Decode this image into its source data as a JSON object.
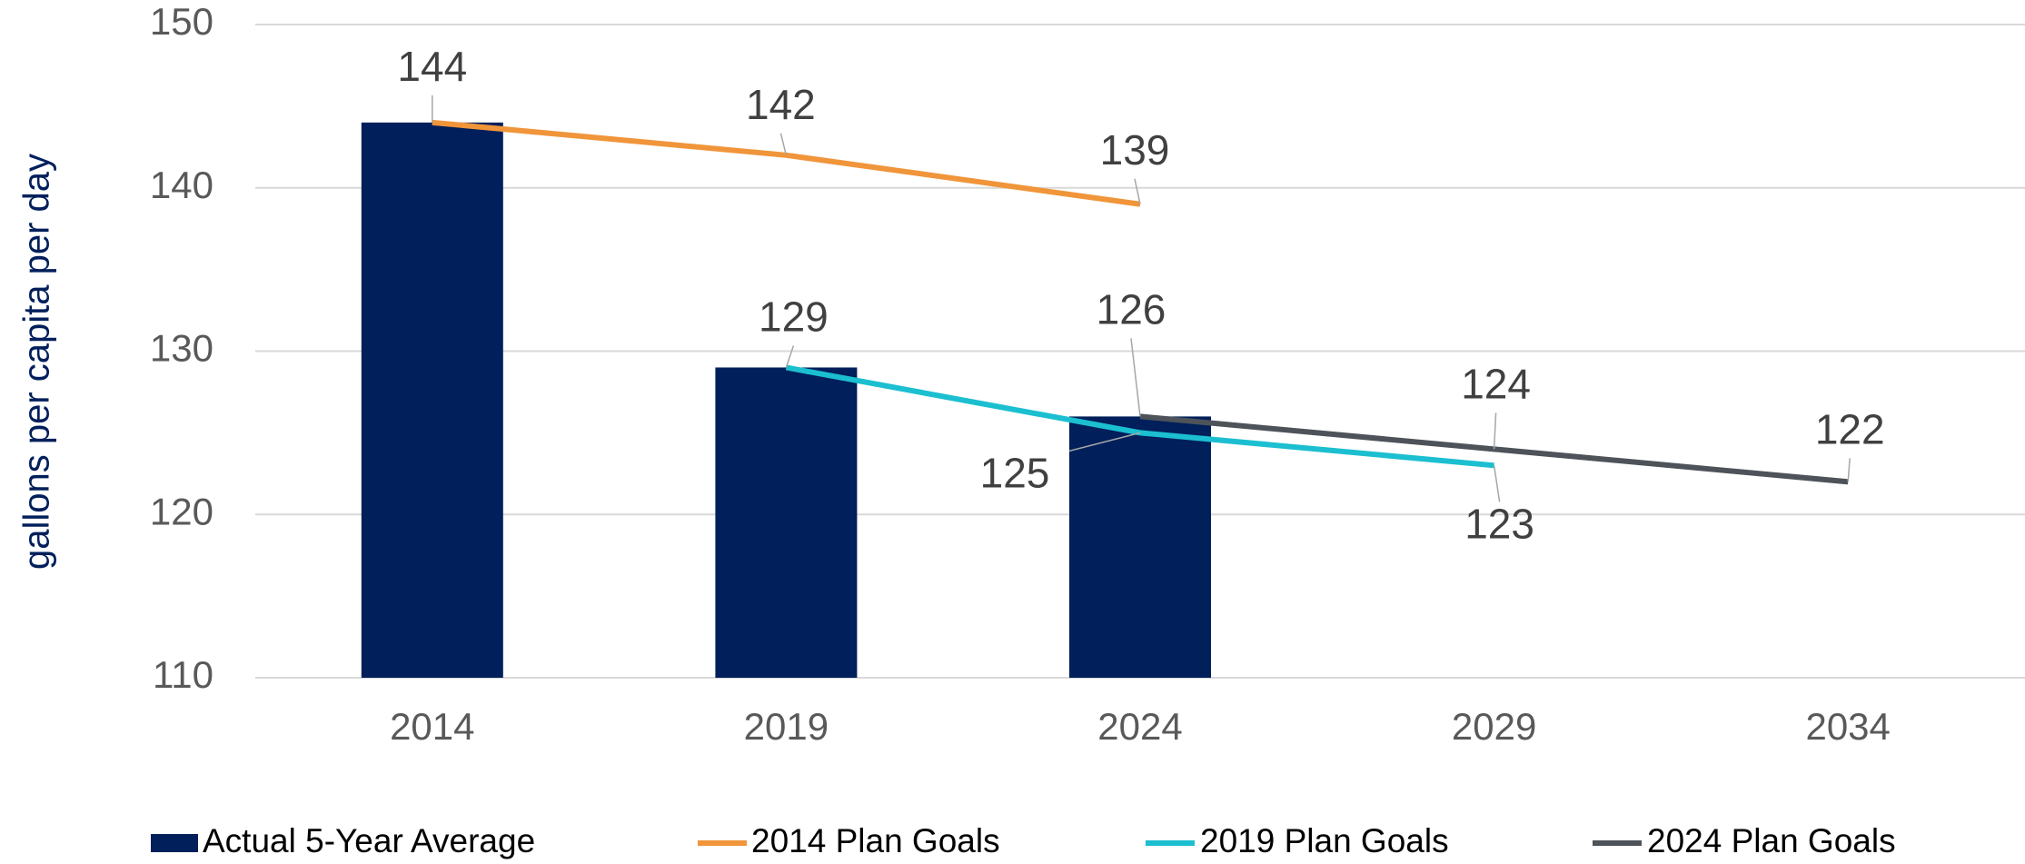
{
  "chart_data": {
    "type": "bar-line",
    "y_label": "gallons per capita per day",
    "categories": [
      "2014",
      "2019",
      "2024",
      "2029",
      "2034"
    ],
    "series": [
      {
        "name": "Actual 5-Year Average",
        "type": "bar",
        "color": "#001f5b",
        "values": [
          144,
          129,
          126,
          null,
          null
        ]
      },
      {
        "name": "2014 Plan Goals",
        "type": "line",
        "color": "#f0953a",
        "values": [
          144,
          142,
          139,
          null,
          null
        ]
      },
      {
        "name": "2019 Plan Goals",
        "type": "line",
        "color": "#1bbfd0",
        "values": [
          null,
          129,
          125,
          123,
          null
        ]
      },
      {
        "name": "2024 Plan Goals",
        "type": "line",
        "color": "#4d5359",
        "values": [
          null,
          null,
          126,
          124,
          122
        ]
      }
    ],
    "ylim": [
      110,
      150
    ],
    "yticks": [
      110,
      120,
      130,
      140,
      150
    ],
    "grid": true,
    "legend": "bottom"
  }
}
